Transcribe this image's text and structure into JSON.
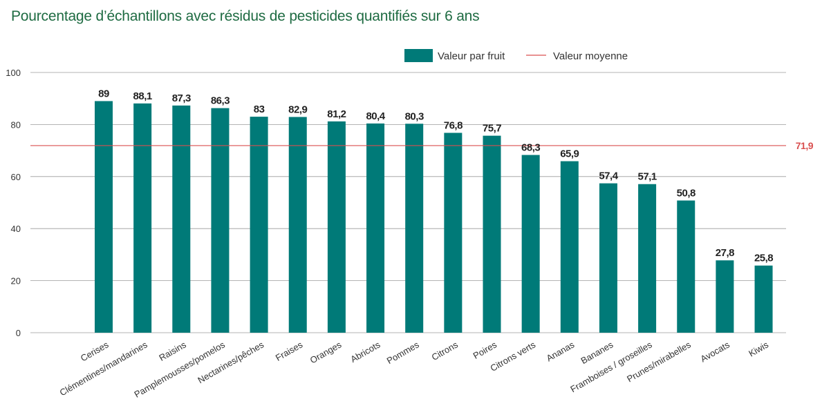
{
  "chart_data": {
    "type": "bar",
    "title": "Pourcentage d’échantillons avec résidus de pesticides quantifiés sur 6 ans",
    "categories": [
      "Cerises",
      "Clémentines/mandarines",
      "Raisins",
      "Pamplemousses/pomelos",
      "Nectarines/pêches",
      "Fraises",
      "Oranges",
      "Abricots",
      "Pommes",
      "Citrons",
      "Poires",
      "Citrons verts",
      "Ananas",
      "Bananes",
      "Framboises / groseilles",
      "Prunes/mirabelles",
      "Avocats",
      "Kiwis"
    ],
    "series": [
      {
        "name": "Valeur par fruit",
        "values": [
          89,
          88.1,
          87.3,
          86.3,
          83,
          82.9,
          81.2,
          80.4,
          80.3,
          76.8,
          75.7,
          68.3,
          65.9,
          57.4,
          57.1,
          50.8,
          27.8,
          25.8
        ],
        "value_labels": [
          "89",
          "88,1",
          "87,3",
          "86,3",
          "83",
          "82,9",
          "81,2",
          "80,4",
          "80,3",
          "76,8",
          "75,7",
          "68,3",
          "65,9",
          "57,4",
          "57,1",
          "50,8",
          "27,8",
          "25,8"
        ]
      }
    ],
    "reference_line": {
      "name": "Valeur moyenne",
      "value": 71.9,
      "label": "71,9"
    },
    "ylim": [
      0,
      100
    ],
    "yticks": [
      "0",
      "20",
      "40",
      "60",
      "80",
      "100"
    ],
    "grid": true,
    "legend_position": "top-right",
    "colors": {
      "bar": "#007a78",
      "average": "#d94f4f",
      "title": "#1e6b42",
      "grid": "#9a9a9a"
    }
  }
}
